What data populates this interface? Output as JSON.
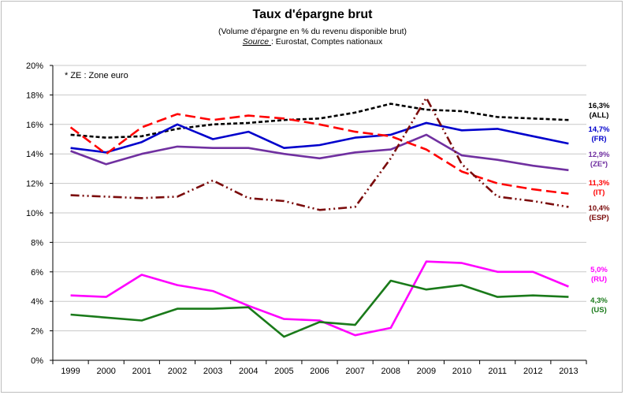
{
  "header": {
    "title": "Taux d'épargne brut",
    "subtitle": "(Volume d'épargne en % du revenu disponible brut)",
    "source_label": "Source ",
    "source_text": ": Eurostat, Comptes nationaux"
  },
  "note": "* ZE : Zone euro",
  "chart_data": {
    "type": "line",
    "title": "Taux d'épargne brut",
    "subtitle": "(Volume d'épargne en % du revenu disponible brut)",
    "xlabel": "",
    "ylabel": "",
    "ylim": [
      0,
      20
    ],
    "y_ticks": [
      "0%",
      "2%",
      "4%",
      "6%",
      "8%",
      "10%",
      "12%",
      "14%",
      "16%",
      "18%",
      "20%"
    ],
    "categories": [
      "1999",
      "2000",
      "2001",
      "2002",
      "2003",
      "2004",
      "2005",
      "2006",
      "2007",
      "2008",
      "2009",
      "2010",
      "2011",
      "2012",
      "2013"
    ],
    "grid": "horizontal",
    "legend": "end-of-line labels on the right",
    "series": [
      {
        "name": "(ALL)",
        "end_label": "16,3%",
        "color": "#000000",
        "style": "short-dash",
        "values": [
          15.3,
          15.1,
          15.2,
          15.7,
          16.0,
          16.1,
          16.3,
          16.4,
          16.8,
          17.4,
          17.0,
          16.9,
          16.5,
          16.4,
          16.3
        ]
      },
      {
        "name": "(FR)",
        "end_label": "14,7%",
        "color": "#0000cc",
        "style": "solid",
        "values": [
          14.4,
          14.1,
          14.8,
          16.0,
          15.0,
          15.5,
          14.4,
          14.6,
          15.1,
          15.3,
          16.1,
          15.6,
          15.7,
          15.2,
          14.7
        ]
      },
      {
        "name": "(ZE*)",
        "end_label": "12,9%",
        "color": "#7030a0",
        "style": "solid",
        "values": [
          14.2,
          13.3,
          14.0,
          14.5,
          14.4,
          14.4,
          14.0,
          13.7,
          14.1,
          14.3,
          15.3,
          13.9,
          13.6,
          13.2,
          12.9
        ]
      },
      {
        "name": "(IT)",
        "end_label": "11,3%",
        "color": "#ff0000",
        "style": "long-dash",
        "values": [
          15.8,
          14.0,
          15.8,
          16.7,
          16.3,
          16.6,
          16.4,
          16.0,
          15.5,
          15.2,
          14.3,
          12.8,
          12.0,
          11.6,
          11.3
        ]
      },
      {
        "name": "(ESP)",
        "end_label": "10,4%",
        "color": "#7b0c0c",
        "style": "dash-dot-dot",
        "values": [
          11.2,
          11.1,
          11.0,
          11.1,
          12.2,
          11.0,
          10.8,
          10.2,
          10.4,
          13.7,
          17.8,
          13.3,
          11.1,
          10.8,
          10.4
        ]
      },
      {
        "name": "(RU)",
        "end_label": "5,0%",
        "color": "#ff00ff",
        "style": "solid",
        "values": [
          4.4,
          4.3,
          5.8,
          5.1,
          4.7,
          3.7,
          2.8,
          2.7,
          1.7,
          2.2,
          6.7,
          6.6,
          6.0,
          6.0,
          5.0
        ]
      },
      {
        "name": "(US)",
        "end_label": "4,3%",
        "color": "#1a7a1a",
        "style": "solid",
        "values": [
          3.1,
          2.9,
          2.7,
          3.5,
          3.5,
          3.6,
          1.6,
          2.6,
          2.4,
          5.4,
          4.8,
          5.1,
          4.3,
          4.4,
          4.3
        ]
      }
    ]
  }
}
